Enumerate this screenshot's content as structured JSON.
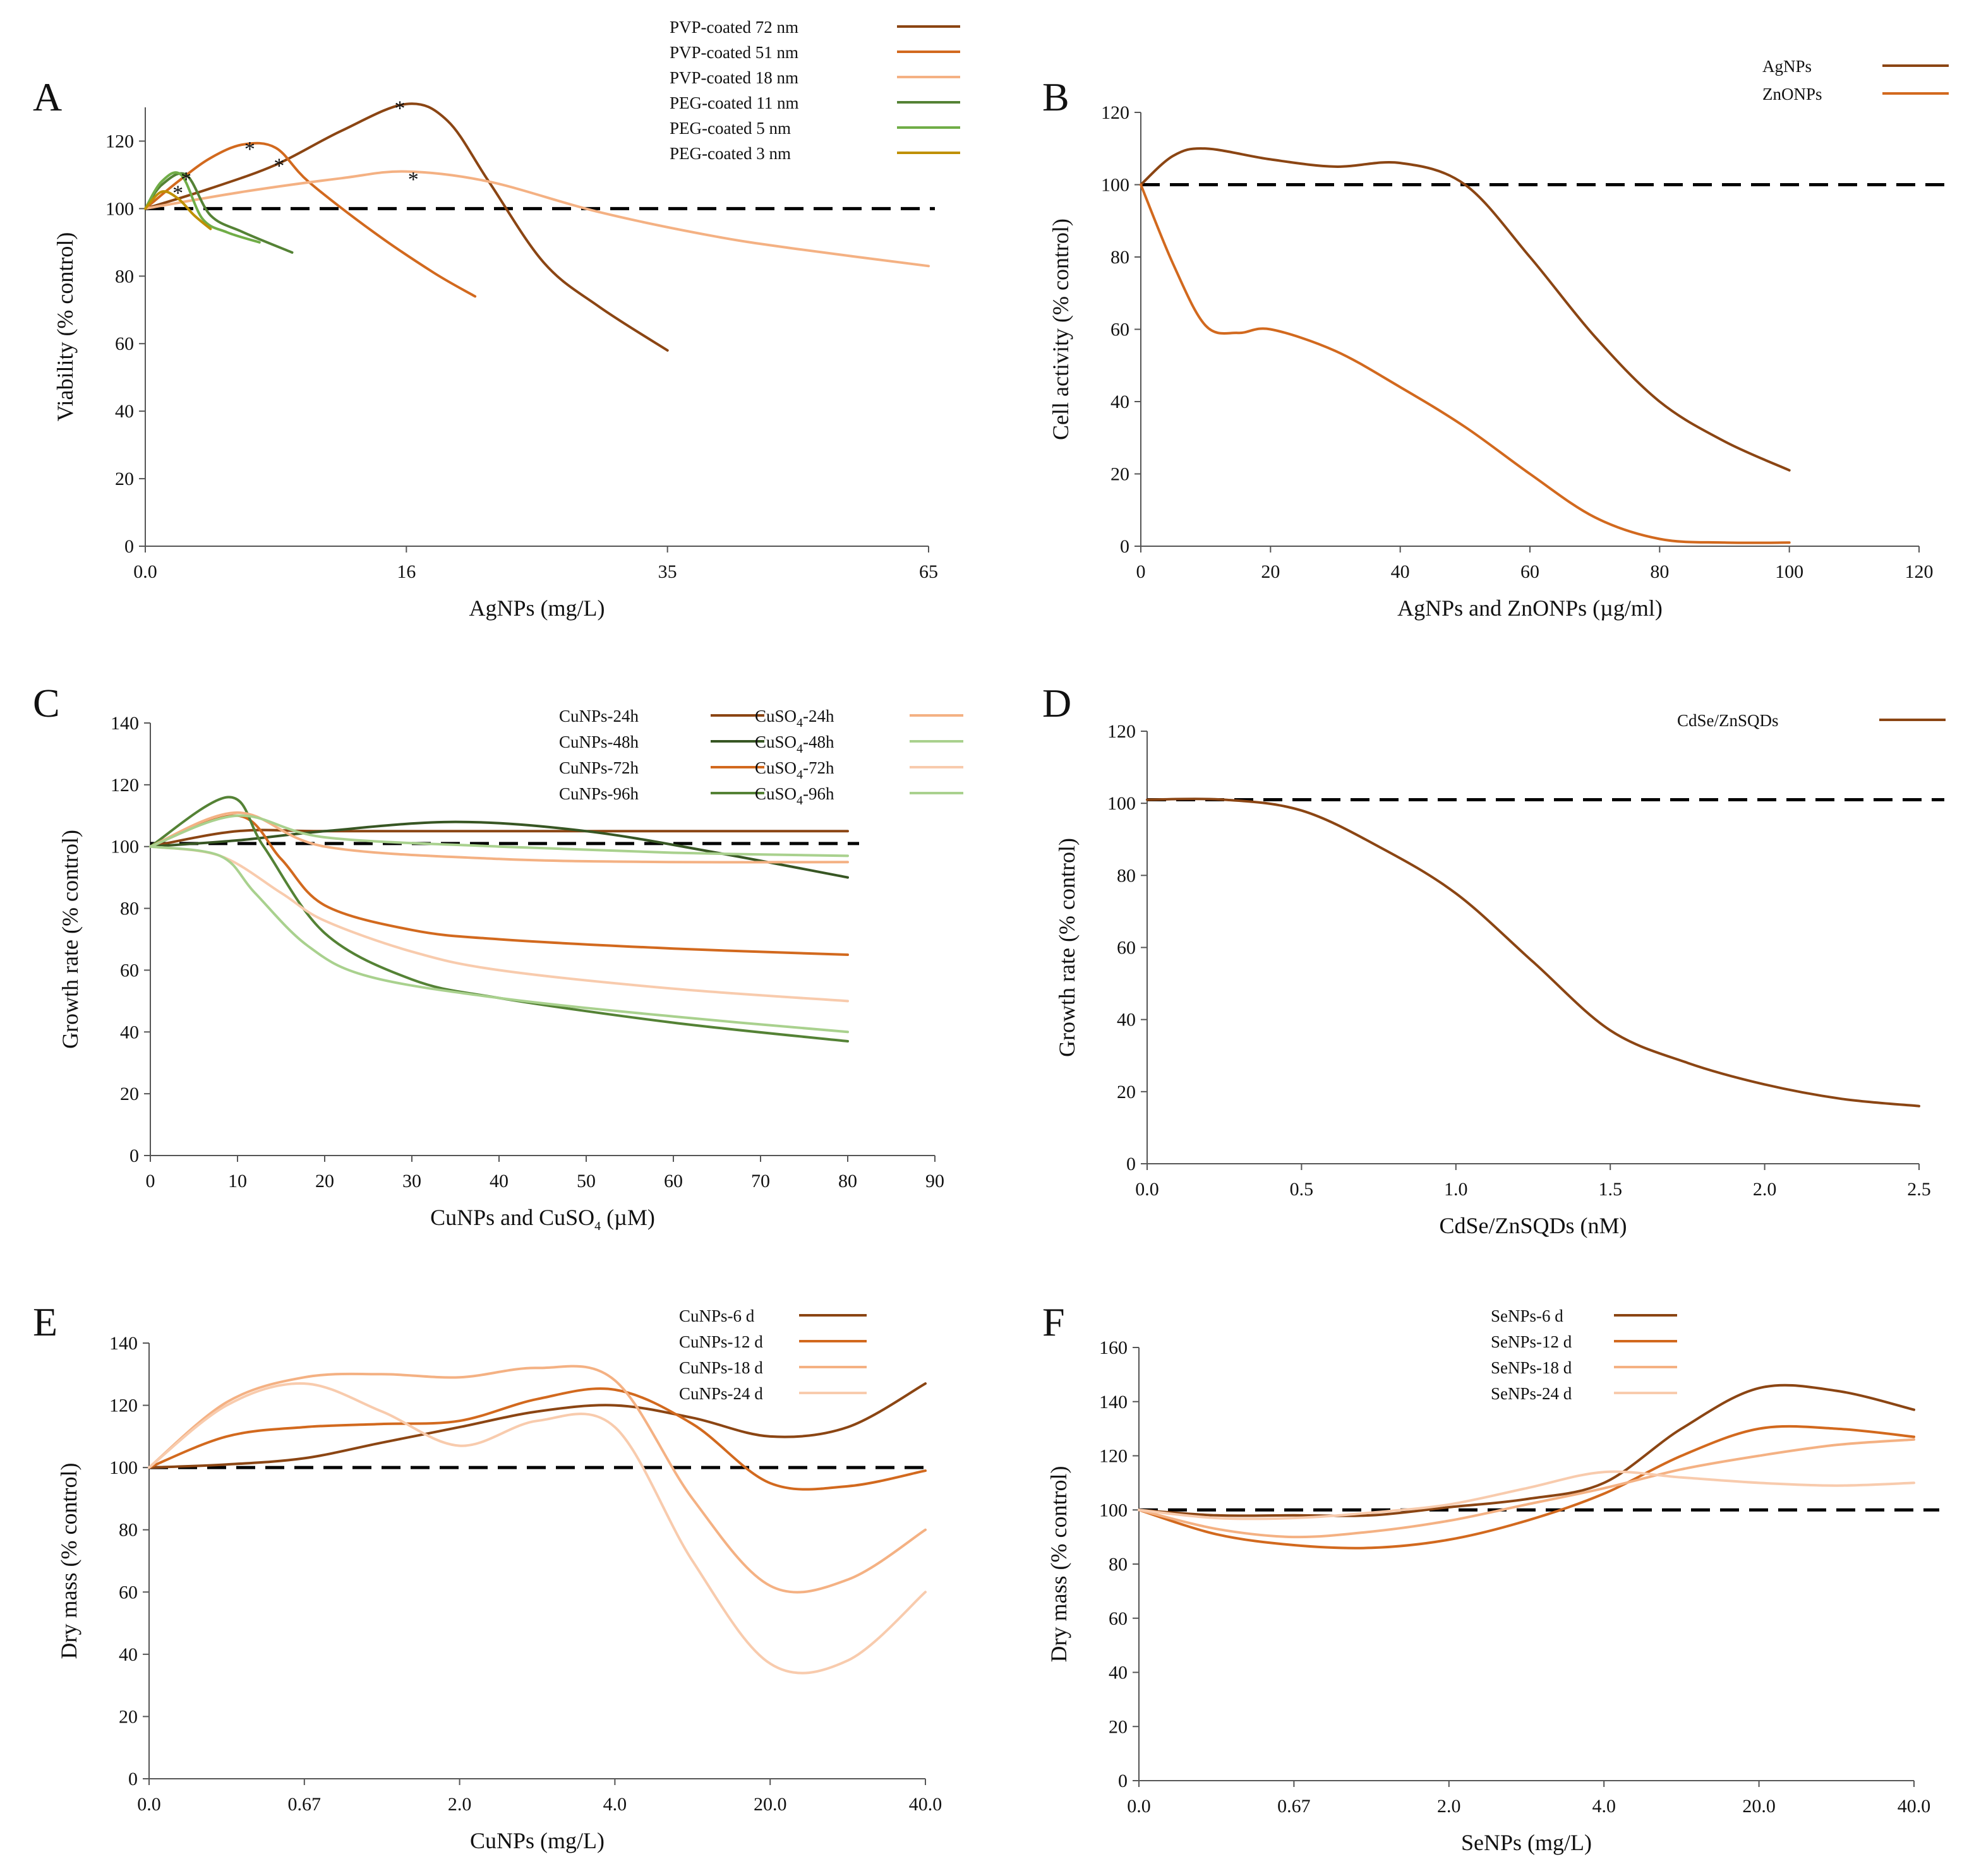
{
  "figure": {
    "description_free": true,
    "colors": {
      "dark_brown": "#8B4513",
      "orange": "#D2691E",
      "light_peach": "#F4B183",
      "pale_peach": "#F8CBAD",
      "dark_green": "#375623",
      "green": "#548235",
      "light_green": "#70AD47",
      "pale_green": "#A9D18E",
      "gold": "#BF9000",
      "reference_line": "#000000"
    }
  },
  "chart_data": [
    {
      "panel": "A",
      "type": "line",
      "xlabel": "AgNPs (mg/L)",
      "ylabel": "Viability (% control)",
      "x_scale": "categorical",
      "x_ticks": [
        "0.0",
        "16",
        "35",
        "65"
      ],
      "xlim": [
        0,
        65
      ],
      "ylim": [
        0,
        130
      ],
      "y_ticks": [
        0,
        20,
        40,
        60,
        80,
        100,
        120
      ],
      "reference_line": 100,
      "series": [
        {
          "name": "PVP-coated 72 nm",
          "color": "#8B4513",
          "x": [
            0,
            4,
            8,
            12,
            16,
            19,
            22,
            26,
            30,
            35
          ],
          "y": [
            100,
            106,
            113,
            123,
            131,
            126,
            108,
            84,
            71,
            58
          ]
        },
        {
          "name": "PVP-coated 51 nm",
          "color": "#D2691E",
          "x": [
            0,
            2,
            4,
            6,
            8,
            10,
            14,
            18,
            21
          ],
          "y": [
            100,
            108,
            115,
            119,
            118,
            108,
            93,
            81,
            74
          ]
        },
        {
          "name": "PVP-coated 18 nm",
          "color": "#F4B183",
          "x": [
            0,
            6,
            12,
            16,
            22,
            30,
            40,
            50,
            65
          ],
          "y": [
            100,
            105,
            109,
            111,
            108,
            99,
            92,
            88,
            83
          ]
        },
        {
          "name": "PEG-coated 11 nm",
          "color": "#548235",
          "x": [
            0,
            1,
            2.5,
            4,
            6,
            9
          ],
          "y": [
            100,
            107,
            110,
            98,
            93,
            87
          ]
        },
        {
          "name": "PEG-coated 5 nm",
          "color": "#70AD47",
          "x": [
            0,
            1,
            2.2,
            3.5,
            5,
            7
          ],
          "y": [
            100,
            108,
            110,
            97,
            93,
            90
          ]
        },
        {
          "name": "PEG-coated 3 nm",
          "color": "#BF9000",
          "x": [
            0,
            1,
            2,
            3,
            4
          ],
          "y": [
            100,
            105,
            103,
            98,
            94
          ]
        }
      ],
      "annotations": [
        {
          "text": "*",
          "x": 15.6,
          "y": 131
        },
        {
          "text": "*",
          "x": 6.4,
          "y": 119
        },
        {
          "text": "*",
          "x": 8.2,
          "y": 114
        },
        {
          "text": "*",
          "x": 16.5,
          "y": 110
        },
        {
          "text": "*",
          "x": 2.5,
          "y": 110
        },
        {
          "text": "*",
          "x": 2.0,
          "y": 106
        }
      ]
    },
    {
      "panel": "B",
      "type": "line",
      "xlabel": "AgNPs and ZnONPs (µg/ml)",
      "ylabel": "Cell activity (% control)",
      "x_scale": "linear",
      "x_ticks": [
        0,
        20,
        40,
        60,
        80,
        100,
        120
      ],
      "xlim": [
        0,
        120
      ],
      "ylim": [
        0,
        120
      ],
      "y_ticks": [
        0,
        20,
        40,
        60,
        80,
        100,
        120
      ],
      "reference_line": 100,
      "series": [
        {
          "name": "AgNPs",
          "color": "#8B4513",
          "x": [
            0,
            5,
            10,
            20,
            30,
            40,
            50,
            60,
            70,
            80,
            90,
            100
          ],
          "y": [
            100,
            108,
            110,
            107,
            105,
            106,
            100,
            80,
            58,
            40,
            29,
            21
          ]
        },
        {
          "name": "ZnONPs",
          "color": "#D2691E",
          "x": [
            0,
            5,
            10,
            15,
            20,
            30,
            40,
            50,
            60,
            70,
            80,
            90,
            100
          ],
          "y": [
            100,
            78,
            61,
            59,
            60,
            54,
            44,
            33,
            20,
            8,
            2,
            1,
            1
          ]
        }
      ]
    },
    {
      "panel": "C",
      "type": "line",
      "xlabel": "CuNPs and CuSO4 (µM)",
      "ylabel": "Growth rate (% control)",
      "x_scale": "linear",
      "x_ticks": [
        0,
        10,
        20,
        30,
        40,
        50,
        60,
        70,
        80,
        90
      ],
      "xlim": [
        0,
        90
      ],
      "ylim": [
        0,
        140
      ],
      "y_ticks": [
        0,
        20,
        40,
        60,
        80,
        100,
        120,
        140
      ],
      "reference_line": 101,
      "series": [
        {
          "name": "CuNPs-24h",
          "color": "#8B4513",
          "x": [
            0,
            10,
            20,
            40,
            60,
            80
          ],
          "y": [
            100,
            105,
            105,
            105,
            105,
            105
          ]
        },
        {
          "name": "CuNPs-48h",
          "color": "#375623",
          "x": [
            0,
            10,
            20,
            35,
            50,
            65,
            80
          ],
          "y": [
            100,
            102,
            105,
            108,
            105,
            98,
            90
          ]
        },
        {
          "name": "CuNPs-72h",
          "color": "#D2691E",
          "x": [
            0,
            10,
            15,
            20,
            30,
            40,
            60,
            80
          ],
          "y": [
            100,
            110,
            96,
            81,
            73,
            70,
            67,
            65
          ]
        },
        {
          "name": "CuNPs-96h",
          "color": "#548235",
          "x": [
            0,
            9,
            13,
            20,
            30,
            40,
            60,
            80
          ],
          "y": [
            100,
            116,
            100,
            72,
            57,
            51,
            43,
            37
          ]
        },
        {
          "name": "CuSO4-24h",
          "color": "#F4B183",
          "x": [
            0,
            10,
            20,
            40,
            60,
            80
          ],
          "y": [
            100,
            111,
            100,
            96,
            95,
            95
          ]
        },
        {
          "name": "CuSO4-48h",
          "color": "#A9D18E",
          "x": [
            0,
            10,
            20,
            40,
            60,
            80
          ],
          "y": [
            100,
            110,
            103,
            100,
            98,
            97
          ]
        },
        {
          "name": "CuSO4-72h",
          "color": "#F8CBAD",
          "x": [
            0,
            8,
            15,
            20,
            30,
            40,
            60,
            80
          ],
          "y": [
            100,
            97,
            85,
            76,
            66,
            60,
            54,
            50
          ]
        },
        {
          "name": "CuSO4-96h",
          "color": "#A9D18E",
          "x": [
            0,
            8,
            12,
            18,
            25,
            40,
            60,
            80
          ],
          "y": [
            100,
            97,
            85,
            68,
            58,
            51,
            45,
            40
          ]
        }
      ]
    },
    {
      "panel": "D",
      "type": "line",
      "xlabel": "CdSe/ZnSQDs (nM)",
      "ylabel": "Growth rate (% control)",
      "x_scale": "linear",
      "x_ticks": [
        "0.0",
        "0.5",
        "1.0",
        "1.5",
        "2.0",
        "2.5"
      ],
      "xlim": [
        0,
        2.5
      ],
      "ylim": [
        0,
        120
      ],
      "y_ticks": [
        0,
        20,
        40,
        60,
        80,
        100,
        120
      ],
      "reference_line": 101,
      "series": [
        {
          "name": "CdSe/ZnSQDs",
          "color": "#8B4513",
          "x": [
            0,
            0.25,
            0.5,
            0.75,
            1.0,
            1.25,
            1.5,
            1.75,
            2.0,
            2.25,
            2.5
          ],
          "y": [
            101,
            101,
            98,
            88,
            75,
            56,
            37,
            28,
            22,
            18,
            16
          ]
        }
      ]
    },
    {
      "panel": "E",
      "type": "line",
      "xlabel": "CuNPs (mg/L)",
      "ylabel": "Dry mass (% control)",
      "x_scale": "categorical",
      "x_ticks": [
        "0.0",
        "0.67",
        "2.0",
        "4.0",
        "20.0",
        "40.0"
      ],
      "ylim": [
        0,
        140
      ],
      "y_ticks": [
        0,
        20,
        40,
        60,
        80,
        100,
        120,
        140
      ],
      "reference_line": 100,
      "series": [
        {
          "name": "CuNPs-6 d",
          "color": "#8B4513",
          "x": [
            0,
            0.5,
            1,
            1.5,
            2,
            2.5,
            3,
            3.5,
            4,
            4.5,
            5
          ],
          "y": [
            100,
            101,
            103,
            108,
            113,
            118,
            120,
            116,
            110,
            113,
            127
          ]
        },
        {
          "name": "CuNPs-12 d",
          "color": "#D2691E",
          "x": [
            0,
            0.5,
            1,
            1.5,
            2,
            2.5,
            3,
            3.5,
            4,
            4.5,
            5
          ],
          "y": [
            100,
            110,
            113,
            114,
            115,
            122,
            125,
            114,
            95,
            94,
            99
          ]
        },
        {
          "name": "CuNPs-18 d",
          "color": "#F4B183",
          "x": [
            0,
            0.5,
            1,
            1.5,
            2,
            2.5,
            3,
            3.5,
            4,
            4.5,
            5
          ],
          "y": [
            100,
            121,
            129,
            130,
            129,
            132,
            128,
            90,
            62,
            64,
            80
          ]
        },
        {
          "name": "CuNPs-24 d",
          "color": "#F8CBAD",
          "x": [
            0,
            0.5,
            1,
            1.5,
            2,
            2.5,
            3,
            3.5,
            4,
            4.5,
            5
          ],
          "y": [
            100,
            120,
            127,
            118,
            107,
            115,
            113,
            70,
            37,
            38,
            60
          ]
        }
      ]
    },
    {
      "panel": "F",
      "type": "line",
      "xlabel": "SeNPs (mg/L)",
      "ylabel": "Dry mass (% control)",
      "x_scale": "categorical",
      "x_ticks": [
        "0.0",
        "0.67",
        "2.0",
        "4.0",
        "20.0",
        "40.0"
      ],
      "ylim": [
        0,
        160
      ],
      "y_ticks": [
        0,
        20,
        40,
        60,
        80,
        100,
        120,
        140,
        160
      ],
      "reference_line": 100,
      "series": [
        {
          "name": "SeNPs-6 d",
          "color": "#8B4513",
          "x": [
            0,
            0.5,
            1,
            1.5,
            2,
            2.5,
            3,
            3.5,
            4,
            4.5,
            5
          ],
          "y": [
            100,
            98,
            98,
            98,
            101,
            104,
            110,
            130,
            145,
            144,
            137
          ]
        },
        {
          "name": "SeNPs-12 d",
          "color": "#D2691E",
          "x": [
            0,
            0.5,
            1,
            1.5,
            2,
            2.5,
            3,
            3.5,
            4,
            4.5,
            5
          ],
          "y": [
            100,
            91,
            87,
            86,
            89,
            96,
            106,
            120,
            130,
            130,
            127
          ]
        },
        {
          "name": "SeNPs-18 d",
          "color": "#F4B183",
          "x": [
            0,
            0.5,
            1,
            1.5,
            2,
            2.5,
            3,
            3.5,
            4,
            4.5,
            5
          ],
          "y": [
            100,
            93,
            90,
            92,
            96,
            102,
            108,
            115,
            120,
            124,
            126
          ]
        },
        {
          "name": "SeNPs-24 d",
          "color": "#F8CBAD",
          "x": [
            0,
            0.5,
            1,
            1.5,
            2,
            2.5,
            3,
            3.5,
            4,
            4.5,
            5
          ],
          "y": [
            100,
            97,
            97,
            99,
            102,
            108,
            114,
            112,
            110,
            109,
            110
          ]
        }
      ]
    }
  ]
}
